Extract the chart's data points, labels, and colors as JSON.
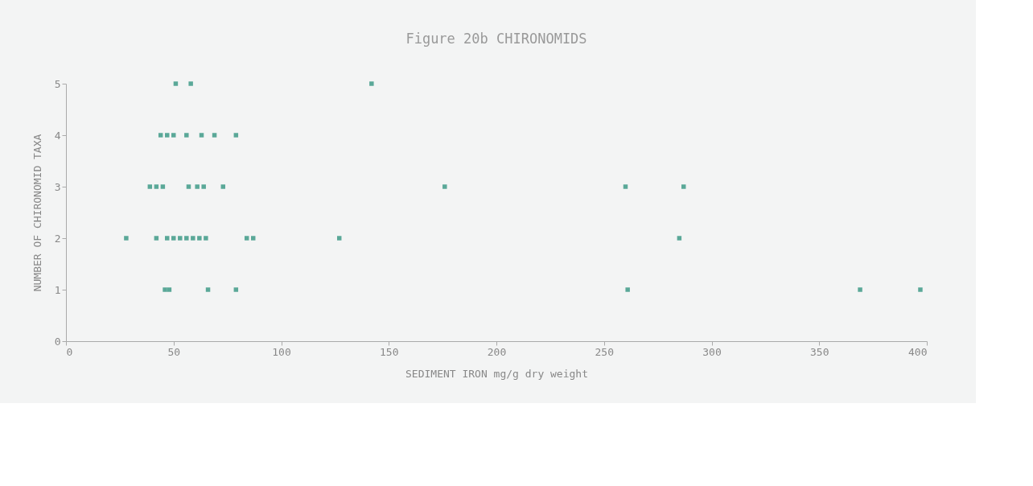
{
  "chart_data": {
    "type": "scatter",
    "title": "Figure 20b CHIRONOMIDS",
    "xlabel": "SEDIMENT IRON mg/g dry weight",
    "ylabel": "NUMBER OF CHIRONOMID TAXA",
    "series": [
      {
        "color": "#5aa898",
        "x": [
          51,
          58,
          142,
          44,
          47,
          50,
          56,
          63,
          69,
          79,
          39,
          42,
          45,
          57,
          61,
          64,
          73,
          176,
          260,
          287,
          28,
          42,
          47,
          50,
          53,
          56,
          59,
          62,
          65,
          84,
          87,
          127,
          285,
          46,
          48,
          66,
          79,
          261,
          369,
          397
        ],
        "values": [
          5,
          5,
          5,
          4,
          4,
          4,
          4,
          4,
          4,
          4,
          3,
          3,
          3,
          3,
          3,
          3,
          3,
          3,
          3,
          3,
          2,
          2,
          2,
          2,
          2,
          2,
          2,
          2,
          2,
          2,
          2,
          2,
          2,
          1,
          1,
          1,
          1,
          1,
          1,
          1
        ]
      }
    ],
    "xlim": [
      0,
      400
    ],
    "xticks": [
      0,
      50,
      100,
      150,
      200,
      250,
      300,
      350,
      400
    ],
    "ylim": [
      0,
      5
    ],
    "yticks": [
      0,
      1,
      2,
      3,
      4,
      5
    ],
    "grid": false,
    "legend": false,
    "marker": "square"
  }
}
